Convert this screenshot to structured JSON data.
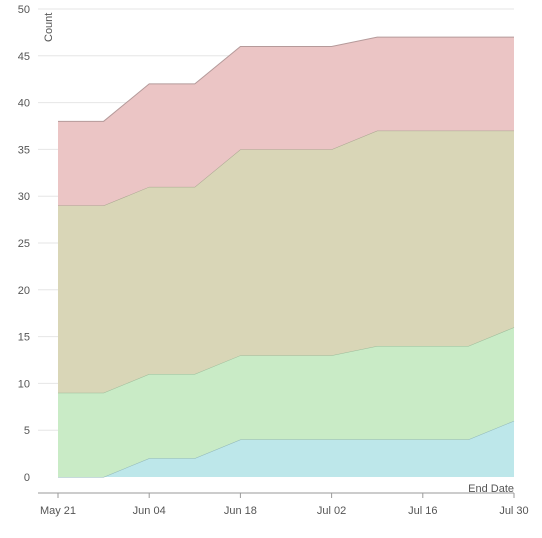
{
  "chart_data": {
    "type": "area",
    "stacked": true,
    "title": "",
    "xlabel": "End Date",
    "ylabel": "Count",
    "ylim": [
      0,
      50
    ],
    "y_ticks": [
      0,
      5,
      10,
      15,
      20,
      25,
      30,
      35,
      40,
      45,
      50
    ],
    "x_tick_labels": [
      "May 21",
      "Jun 04",
      "Jun 18",
      "Jul 02",
      "Jul 16",
      "Jul 30"
    ],
    "x_tick_dates": [
      "2018-05-21",
      "2018-06-04",
      "2018-06-18",
      "2018-07-02",
      "2018-07-16",
      "2018-07-30"
    ],
    "x": [
      "2018-05-21",
      "2018-05-28",
      "2018-06-04",
      "2018-06-11",
      "2018-06-18",
      "2018-06-25",
      "2018-07-02",
      "2018-07-09",
      "2018-07-16",
      "2018-07-23",
      "2018-07-30"
    ],
    "grid": true,
    "series": [
      {
        "color": "#bde7ea",
        "line": "#8fb5b8",
        "values": [
          0,
          0,
          2,
          2,
          4,
          4,
          4,
          4,
          4,
          4,
          6
        ]
      },
      {
        "color": "#c9ebc6",
        "line": "#9dbb9a",
        "values": [
          9,
          9,
          9,
          9,
          9,
          9,
          9,
          10,
          10,
          10,
          10
        ]
      },
      {
        "color": "#d9d6b7",
        "line": "#a8a590",
        "values": [
          20,
          20,
          20,
          20,
          22,
          22,
          22,
          23,
          23,
          23,
          21
        ]
      },
      {
        "color": "#ebc5c5",
        "line": "#b59a9a",
        "values": [
          9,
          9,
          11,
          11,
          11,
          11,
          11,
          10,
          10,
          10,
          10
        ]
      }
    ]
  }
}
